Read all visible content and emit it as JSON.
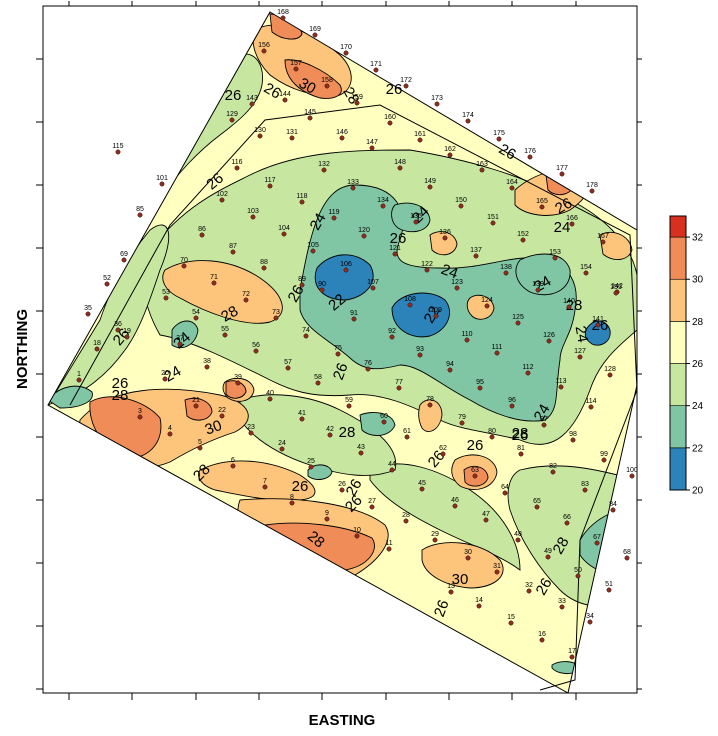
{
  "chart_data": {
    "type": "contour",
    "xlabel": "EASTING",
    "ylabel": "NORTHING",
    "colorbar": {
      "ticks": [
        20,
        22,
        24,
        26,
        28,
        30,
        32
      ],
      "levels": [
        {
          "from": 20,
          "to": 22,
          "color": "#2b83ba"
        },
        {
          "from": 22,
          "to": 24,
          "color": "#80c6a4"
        },
        {
          "from": 24,
          "to": 26,
          "color": "#c7e7a0"
        },
        {
          "from": 26,
          "to": 28,
          "color": "#ffffbf"
        },
        {
          "from": 28,
          "to": 30,
          "color": "#fdc47b"
        },
        {
          "from": 30,
          "to": 32,
          "color": "#f08c58"
        },
        {
          "from": 32,
          "to": 33,
          "color": "#d7301f"
        }
      ]
    },
    "contour_labels": [
      "26",
      "26",
      "30",
      "28",
      "26",
      "26",
      "26",
      "24",
      "26",
      "24",
      "26",
      "22",
      "24",
      "22",
      "26",
      "26",
      "24",
      "24",
      "24",
      "24",
      "28",
      "26",
      "24",
      "26",
      "28",
      "30",
      "28",
      "28",
      "24",
      "26",
      "26",
      "28",
      "26",
      "26",
      "26",
      "28",
      "30",
      "28",
      "26",
      "26",
      "28",
      "26",
      "26"
    ],
    "sample_points": [
      {
        "id": "1"
      },
      {
        "id": "3"
      },
      {
        "id": "4"
      },
      {
        "id": "5"
      },
      {
        "id": "6"
      },
      {
        "id": "7"
      },
      {
        "id": "8"
      },
      {
        "id": "9"
      },
      {
        "id": "10"
      },
      {
        "id": "11"
      },
      {
        "id": "13"
      },
      {
        "id": "14"
      },
      {
        "id": "15"
      },
      {
        "id": "16"
      },
      {
        "id": "17"
      },
      {
        "id": "18"
      },
      {
        "id": "19"
      },
      {
        "id": "20"
      },
      {
        "id": "21"
      },
      {
        "id": "22"
      },
      {
        "id": "23"
      },
      {
        "id": "24"
      },
      {
        "id": "25"
      },
      {
        "id": "26"
      },
      {
        "id": "27"
      },
      {
        "id": "28"
      },
      {
        "id": "29"
      },
      {
        "id": "30"
      },
      {
        "id": "31"
      },
      {
        "id": "32"
      },
      {
        "id": "33"
      },
      {
        "id": "34"
      },
      {
        "id": "35"
      },
      {
        "id": "36"
      },
      {
        "id": "37"
      },
      {
        "id": "38"
      },
      {
        "id": "39"
      },
      {
        "id": "40"
      },
      {
        "id": "41"
      },
      {
        "id": "42"
      },
      {
        "id": "43"
      },
      {
        "id": "44"
      },
      {
        "id": "45"
      },
      {
        "id": "46"
      },
      {
        "id": "47"
      },
      {
        "id": "48"
      },
      {
        "id": "49"
      },
      {
        "id": "50"
      },
      {
        "id": "51"
      },
      {
        "id": "52"
      },
      {
        "id": "53"
      },
      {
        "id": "54"
      },
      {
        "id": "55"
      },
      {
        "id": "56"
      },
      {
        "id": "57"
      },
      {
        "id": "58"
      },
      {
        "id": "59"
      },
      {
        "id": "60"
      },
      {
        "id": "61"
      },
      {
        "id": "62"
      },
      {
        "id": "63"
      },
      {
        "id": "64"
      },
      {
        "id": "65"
      },
      {
        "id": "66"
      },
      {
        "id": "67"
      },
      {
        "id": "68"
      },
      {
        "id": "69"
      },
      {
        "id": "70"
      },
      {
        "id": "71"
      },
      {
        "id": "72"
      },
      {
        "id": "73"
      },
      {
        "id": "74"
      },
      {
        "id": "75"
      },
      {
        "id": "76"
      },
      {
        "id": "77"
      },
      {
        "id": "78"
      },
      {
        "id": "79"
      },
      {
        "id": "80"
      },
      {
        "id": "81"
      },
      {
        "id": "82"
      },
      {
        "id": "83"
      },
      {
        "id": "84"
      },
      {
        "id": "85"
      },
      {
        "id": "86"
      },
      {
        "id": "87"
      },
      {
        "id": "88"
      },
      {
        "id": "89"
      },
      {
        "id": "90"
      },
      {
        "id": "91"
      },
      {
        "id": "92"
      },
      {
        "id": "93"
      },
      {
        "id": "94"
      },
      {
        "id": "95"
      },
      {
        "id": "96"
      },
      {
        "id": "97"
      },
      {
        "id": "98"
      },
      {
        "id": "99"
      },
      {
        "id": "100"
      },
      {
        "id": "101"
      },
      {
        "id": "102"
      },
      {
        "id": "103"
      },
      {
        "id": "104"
      },
      {
        "id": "105"
      },
      {
        "id": "106"
      },
      {
        "id": "107"
      },
      {
        "id": "108"
      },
      {
        "id": "109"
      },
      {
        "id": "110"
      },
      {
        "id": "111"
      },
      {
        "id": "112"
      },
      {
        "id": "113"
      },
      {
        "id": "114"
      },
      {
        "id": "115"
      },
      {
        "id": "116"
      },
      {
        "id": "117"
      },
      {
        "id": "118"
      },
      {
        "id": "119"
      },
      {
        "id": "120"
      },
      {
        "id": "121"
      },
      {
        "id": "122"
      },
      {
        "id": "123"
      },
      {
        "id": "124"
      },
      {
        "id": "125"
      },
      {
        "id": "126"
      },
      {
        "id": "127"
      },
      {
        "id": "128"
      },
      {
        "id": "129"
      },
      {
        "id": "130"
      },
      {
        "id": "131"
      },
      {
        "id": "132"
      },
      {
        "id": "133"
      },
      {
        "id": "134"
      },
      {
        "id": "135"
      },
      {
        "id": "136"
      },
      {
        "id": "137"
      },
      {
        "id": "138"
      },
      {
        "id": "139"
      },
      {
        "id": "140"
      },
      {
        "id": "141"
      },
      {
        "id": "142"
      },
      {
        "id": "143"
      },
      {
        "id": "144"
      },
      {
        "id": "145"
      },
      {
        "id": "146"
      },
      {
        "id": "147"
      },
      {
        "id": "148"
      },
      {
        "id": "149"
      },
      {
        "id": "150"
      },
      {
        "id": "151"
      },
      {
        "id": "152"
      },
      {
        "id": "153"
      },
      {
        "id": "154"
      },
      {
        "id": "155"
      },
      {
        "id": "156"
      },
      {
        "id": "157"
      },
      {
        "id": "158"
      },
      {
        "id": "159"
      },
      {
        "id": "160"
      },
      {
        "id": "161"
      },
      {
        "id": "162"
      },
      {
        "id": "163"
      },
      {
        "id": "164"
      },
      {
        "id": "165"
      },
      {
        "id": "166"
      },
      {
        "id": "167"
      },
      {
        "id": "168"
      },
      {
        "id": "169"
      },
      {
        "id": "170"
      },
      {
        "id": "171"
      },
      {
        "id": "172"
      },
      {
        "id": "173"
      },
      {
        "id": "174"
      },
      {
        "id": "175"
      },
      {
        "id": "176"
      },
      {
        "id": "177"
      },
      {
        "id": "178"
      }
    ]
  }
}
